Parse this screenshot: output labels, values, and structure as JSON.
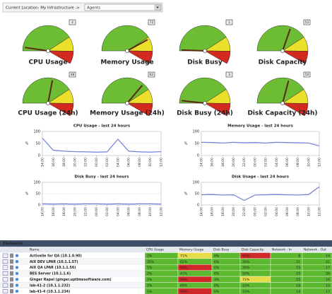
{
  "location": {
    "label": "Current Location: My Infrastructure ->",
    "selected": "Agents"
  },
  "gauges": [
    {
      "label": "CPU Usage",
      "value": 4
    },
    {
      "label": "Memory Usage",
      "value": 72
    },
    {
      "label": "Disk Busy",
      "value": 1
    },
    {
      "label": "Disk Capacity",
      "value": 52
    },
    {
      "label": "CPU Usage (24h)",
      "value": 48
    },
    {
      "label": "Memory Usage (24h)",
      "value": 62
    },
    {
      "label": "Disk Busy (24h)",
      "value": 3
    },
    {
      "label": "Disk Capacity (24h)",
      "value": 50
    }
  ],
  "gauge_scale": {
    "range": [
      0,
      100
    ],
    "bands": [
      {
        "to": 70,
        "color": "#6cbd34"
      },
      {
        "to": 86,
        "color": "#ecdf2a"
      },
      {
        "to": 100,
        "color": "#d22a1e"
      }
    ]
  },
  "charts": [
    {
      "type": "line",
      "title": "CPU Usage - last 24 hours",
      "ylabel": "%",
      "color": "#6f7fd8",
      "ylim": [
        0,
        100
      ],
      "yticks": [
        0,
        50,
        100
      ],
      "grid": true,
      "categories": [
        "14:00",
        "16:00",
        "18:00",
        "20:00",
        "22:00",
        "00:00",
        "02:00",
        "04:00",
        "06:00",
        "08:00",
        "10:00",
        "12:00"
      ],
      "values": [
        72,
        22,
        18,
        16,
        15,
        14,
        15,
        68,
        18,
        15,
        14,
        16
      ]
    },
    {
      "type": "line",
      "title": "Memory Usage - last 24 hours",
      "ylabel": "%",
      "color": "#6f7fd8",
      "ylim": [
        0,
        100
      ],
      "yticks": [
        0,
        50,
        100
      ],
      "grid": true,
      "categories": [
        "14:00",
        "16:00",
        "18:00",
        "20:00",
        "22:00",
        "00:00",
        "02:00",
        "04:00",
        "06:00",
        "08:00",
        "10:00",
        "12:00"
      ],
      "values": [
        55,
        54,
        52,
        55,
        53,
        54,
        52,
        55,
        54,
        53,
        52,
        40
      ]
    },
    {
      "type": "line",
      "title": "Disk Busy - last 24 hours",
      "ylabel": "%",
      "color": "#6f7fd8",
      "ylim": [
        0,
        100
      ],
      "yticks": [
        0,
        50,
        100
      ],
      "grid": true,
      "categories": [
        "14:00",
        "16:00",
        "18:00",
        "20:00",
        "22:00",
        "00:00",
        "02:00",
        "04:00",
        "06:00",
        "08:00",
        "10:00",
        "12:00"
      ],
      "values": [
        5,
        4,
        5,
        4,
        5,
        5,
        4,
        5,
        4,
        5,
        5,
        4
      ]
    },
    {
      "type": "line",
      "title": "Disk Usage - last 24 hours",
      "ylabel": "%",
      "color": "#6f7fd8",
      "ylim": [
        0,
        100
      ],
      "yticks": [
        0,
        50,
        100
      ],
      "grid": true,
      "categories": [
        "14:00",
        "16:00",
        "18:00",
        "20:00",
        "22:00",
        "00:00",
        "02:00",
        "04:00",
        "06:00",
        "08:00",
        "10:00",
        "12:00"
      ],
      "values": [
        45,
        46,
        44,
        45,
        20,
        44,
        45,
        46,
        45,
        44,
        46,
        80
      ]
    }
  ],
  "table": {
    "title": "Elements",
    "columns": [
      "Name",
      "CPU Usage",
      "Memory Usage",
      "Disk Busy",
      "Disk Capacity",
      "Network - In",
      "Network - Out"
    ],
    "colors": {
      "g": "#5cb82e",
      "y": "#e6dc48",
      "r": "#d02828"
    },
    "rows": [
      {
        "cells": [
          "Activelle for QA (10.1.0.90)",
          "2%",
          "71%",
          "0%",
          "92%",
          "8",
          "14"
        ],
        "status": [
          "g",
          "y",
          "g",
          "r",
          "g",
          "g"
        ]
      },
      {
        "cells": [
          "AIX DEV LPAR (10.1.1.57)",
          "35%",
          "61%",
          "0%",
          "26%",
          "21",
          "21"
        ],
        "status": [
          "g",
          "g",
          "g",
          "g",
          "g",
          "g"
        ]
      },
      {
        "cells": [
          "AIX QA LPAR (10.1.1.56)",
          "1%",
          "94%",
          "0%",
          "26%",
          "15",
          "17"
        ],
        "status": [
          "g",
          "r",
          "g",
          "g",
          "g",
          "g"
        ]
      },
      {
        "cells": [
          "BES Server (10.1.1.6)",
          "2%",
          "43%",
          "0%",
          "50%",
          "15",
          "28"
        ],
        "status": [
          "g",
          "g",
          "g",
          "g",
          "g",
          "g"
        ]
      },
      {
        "cells": [
          "Ginger Rapel (ginger.uptimesoftware.com)",
          "1%",
          "96%",
          "3%",
          "71%",
          "15",
          "16"
        ],
        "status": [
          "g",
          "r",
          "g",
          "y",
          "g",
          "g"
        ]
      },
      {
        "cells": [
          "lab-41-2 (10.1.1.232)",
          "1%",
          "69%",
          "0%",
          "23%",
          "19",
          "15"
        ],
        "status": [
          "g",
          "g",
          "g",
          "g",
          "g",
          "g"
        ]
      },
      {
        "cells": [
          "lab-41-4 (10.1.1.234)",
          "1%",
          "90%",
          "0%",
          "23%",
          "14",
          "17"
        ],
        "status": [
          "g",
          "r",
          "g",
          "g",
          "g",
          "g"
        ]
      }
    ]
  }
}
